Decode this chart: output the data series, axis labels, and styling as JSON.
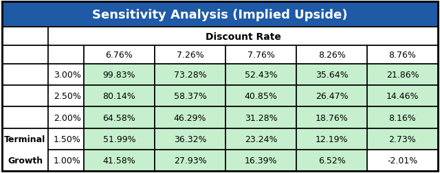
{
  "title": "Sensitivity Analysis (Implied Upside)",
  "title_bg": "#1F5AA6",
  "title_color": "#FFFFFF",
  "header_label": "Discount Rate",
  "col_headers": [
    "6.76%",
    "7.26%",
    "7.76%",
    "8.26%",
    "8.76%"
  ],
  "row_headers": [
    "3.00%",
    "2.50%",
    "2.00%",
    "1.50%",
    "1.00%"
  ],
  "side_label_line1": "Terminal",
  "side_label_line2": "Growth",
  "data": [
    [
      "99.83%",
      "73.28%",
      "52.43%",
      "35.64%",
      "21.86%"
    ],
    [
      "80.14%",
      "58.37%",
      "40.85%",
      "26.47%",
      "14.46%"
    ],
    [
      "64.58%",
      "46.29%",
      "31.28%",
      "18.76%",
      "8.16%"
    ],
    [
      "51.99%",
      "36.32%",
      "23.24%",
      "12.19%",
      "2.73%"
    ],
    [
      "41.58%",
      "27.93%",
      "16.39%",
      "6.52%",
      "-2.01%"
    ]
  ],
  "cell_bg_green": "#C6EFCE",
  "cell_bg_white": "#FFFFFF",
  "title_fontsize": 13,
  "body_fontsize": 9,
  "header_fontsize": 10
}
